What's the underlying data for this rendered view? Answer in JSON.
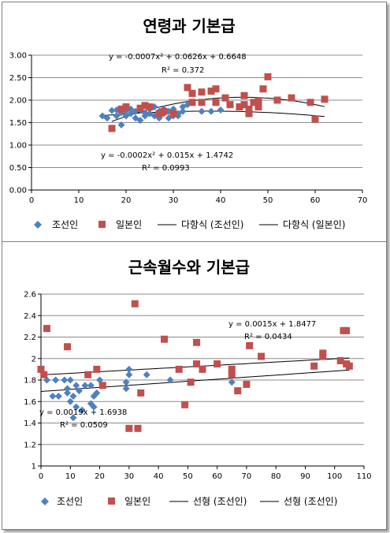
{
  "chart_data": [
    {
      "type": "scatter",
      "title": "연령과 기본급",
      "xlim": [
        0,
        70
      ],
      "ylim": [
        0.0,
        3.0
      ],
      "x_ticks": [
        "0",
        "10",
        "20",
        "30",
        "40",
        "50",
        "60",
        "70"
      ],
      "y_ticks": [
        "0.00",
        "0.50",
        "1.00",
        "1.50",
        "2.00",
        "2.50",
        "3.00"
      ],
      "grid": "horizontal",
      "legend": "bottom",
      "legend_entries": [
        "조선인",
        "일본인",
        "다항식 (조선인)",
        "다항식 (일본인)"
      ],
      "series": [
        {
          "name": "조선인",
          "marker": "diamond",
          "color": "#4f81bd",
          "points": [
            [
              15,
              1.65
            ],
            [
              16,
              1.6
            ],
            [
              17,
              1.77
            ],
            [
              18,
              1.78
            ],
            [
              18,
              1.65
            ],
            [
              19,
              1.45
            ],
            [
              19,
              1.72
            ],
            [
              20,
              1.76
            ],
            [
              20,
              1.65
            ],
            [
              21,
              1.8
            ],
            [
              21,
              1.7
            ],
            [
              22,
              1.6
            ],
            [
              22,
              1.75
            ],
            [
              23,
              1.55
            ],
            [
              23,
              1.78
            ],
            [
              24,
              1.65
            ],
            [
              24,
              1.72
            ],
            [
              25,
              1.7
            ],
            [
              25,
              1.8
            ],
            [
              26,
              1.65
            ],
            [
              26,
              1.85
            ],
            [
              27,
              1.75
            ],
            [
              27,
              1.6
            ],
            [
              28,
              1.7
            ],
            [
              28,
              1.8
            ],
            [
              29,
              1.6
            ],
            [
              29,
              1.75
            ],
            [
              30,
              1.65
            ],
            [
              30,
              1.8
            ],
            [
              31,
              1.7
            ],
            [
              31,
              1.65
            ],
            [
              32,
              1.75
            ],
            [
              32,
              1.85
            ],
            [
              33,
              1.9
            ],
            [
              36,
              1.75
            ],
            [
              38,
              1.75
            ],
            [
              40,
              1.78
            ]
          ]
        },
        {
          "name": "일본인",
          "marker": "square",
          "color": "#c0504d",
          "points": [
            [
              17,
              1.37
            ],
            [
              19,
              1.8
            ],
            [
              20,
              1.85
            ],
            [
              23,
              1.82
            ],
            [
              24,
              1.88
            ],
            [
              25,
              1.85
            ],
            [
              27,
              1.7
            ],
            [
              28,
              1.75
            ],
            [
              30,
              1.7
            ],
            [
              33,
              2.28
            ],
            [
              34,
              1.95
            ],
            [
              34,
              2.15
            ],
            [
              36,
              1.95
            ],
            [
              36,
              2.18
            ],
            [
              38,
              2.2
            ],
            [
              39,
              2.25
            ],
            [
              39,
              1.95
            ],
            [
              41,
              2.05
            ],
            [
              42,
              1.9
            ],
            [
              44,
              1.85
            ],
            [
              45,
              1.9
            ],
            [
              45,
              2.1
            ],
            [
              46,
              1.8
            ],
            [
              46,
              1.7
            ],
            [
              47,
              1.95
            ],
            [
              48,
              1.85
            ],
            [
              48,
              1.98
            ],
            [
              49,
              2.25
            ],
            [
              50,
              2.52
            ],
            [
              52,
              2.0
            ],
            [
              55,
              2.05
            ],
            [
              59,
              1.95
            ],
            [
              60,
              1.58
            ],
            [
              62,
              2.02
            ]
          ]
        }
      ],
      "trendlines": [
        {
          "name": "다항식 (조선인)",
          "type": "poly2",
          "coef": [
            -0.0002,
            0.015,
            1.4742
          ],
          "range": [
            15,
            62
          ]
        },
        {
          "name": "다항식 (일본인)",
          "type": "poly2",
          "coef": [
            -0.0007,
            0.0626,
            0.6648
          ],
          "range": [
            17,
            62
          ]
        }
      ],
      "annotations": [
        {
          "eq": "y = -0.0007x² + 0.0626x + 0.6648",
          "r2": "R² = 0.372"
        },
        {
          "eq": "y = -0.0002x² + 0.015x + 1.4742",
          "r2": "R² = 0.0993"
        }
      ]
    },
    {
      "type": "scatter",
      "title": "근속월수와 기본급",
      "xlim": [
        0,
        110
      ],
      "ylim": [
        1,
        2.6
      ],
      "x_ticks": [
        "0",
        "10",
        "20",
        "30",
        "40",
        "50",
        "60",
        "70",
        "80",
        "90",
        "100",
        "110"
      ],
      "y_ticks": [
        "1",
        "1.2",
        "1.4",
        "1.6",
        "1.8",
        "2",
        "2.2",
        "2.4",
        "2.6"
      ],
      "grid": "horizontal",
      "legend": "bottom",
      "legend_entries": [
        "조선인",
        "일본인",
        "선형 (조선인)",
        "선형 (조선인)"
      ],
      "series": [
        {
          "name": "조선인",
          "marker": "diamond",
          "color": "#4f81bd",
          "points": [
            [
              1,
              1.85
            ],
            [
              2,
              1.8
            ],
            [
              4,
              1.65
            ],
            [
              5,
              1.8
            ],
            [
              6,
              1.65
            ],
            [
              8,
              1.8
            ],
            [
              9,
              1.72
            ],
            [
              9,
              1.68
            ],
            [
              10,
              1.6
            ],
            [
              10,
              1.8
            ],
            [
              11,
              1.45
            ],
            [
              11,
              1.65
            ],
            [
              12,
              1.75
            ],
            [
              12,
              1.55
            ],
            [
              13,
              1.7
            ],
            [
              14,
              1.52
            ],
            [
              15,
              1.75
            ],
            [
              16,
              1.85
            ],
            [
              17,
              1.58
            ],
            [
              17,
              1.75
            ],
            [
              18,
              1.65
            ],
            [
              18,
              1.55
            ],
            [
              19,
              1.68
            ],
            [
              20,
              1.8
            ],
            [
              29,
              1.72
            ],
            [
              29,
              1.78
            ],
            [
              30,
              1.85
            ],
            [
              30,
              1.9
            ],
            [
              36,
              1.85
            ],
            [
              44,
              1.8
            ],
            [
              65,
              1.78
            ]
          ]
        },
        {
          "name": "일본인",
          "marker": "square",
          "color": "#c0504d",
          "points": [
            [
              0,
              1.9
            ],
            [
              1,
              1.85
            ],
            [
              2,
              2.28
            ],
            [
              9,
              2.11
            ],
            [
              16,
              1.85
            ],
            [
              19,
              1.9
            ],
            [
              21,
              1.75
            ],
            [
              30,
              1.35
            ],
            [
              32,
              2.51
            ],
            [
              33,
              1.35
            ],
            [
              34,
              1.68
            ],
            [
              42,
              2.18
            ],
            [
              47,
              1.9
            ],
            [
              49,
              1.57
            ],
            [
              51,
              1.78
            ],
            [
              53,
              1.95
            ],
            [
              53,
              2.15
            ],
            [
              55,
              1.9
            ],
            [
              60,
              1.95
            ],
            [
              65,
              1.85
            ],
            [
              65,
              1.9
            ],
            [
              67,
              1.7
            ],
            [
              70,
              1.76
            ],
            [
              71,
              2.12
            ],
            [
              75,
              2.02
            ],
            [
              93,
              1.93
            ],
            [
              96,
              2.02
            ],
            [
              96,
              2.05
            ],
            [
              102,
              1.98
            ],
            [
              103,
              2.26
            ],
            [
              104,
              1.95
            ],
            [
              104,
              2.26
            ],
            [
              105,
              1.93
            ]
          ]
        }
      ],
      "trendlines": [
        {
          "name": "선형 (조선인)",
          "type": "linear",
          "coef": [
            0.0015,
            1.8477
          ],
          "range": [
            0,
            105
          ]
        },
        {
          "name": "선형 (조선인)",
          "type": "linear",
          "coef": [
            0.0019,
            1.6938
          ],
          "range": [
            0,
            105
          ]
        }
      ],
      "annotations": [
        {
          "eq": "y = 0.0015x + 1.8477",
          "r2": "R² = 0.0434"
        },
        {
          "eq": "y = 0.0019x + 1.6938",
          "r2": "R² = 0.0509"
        }
      ]
    }
  ]
}
